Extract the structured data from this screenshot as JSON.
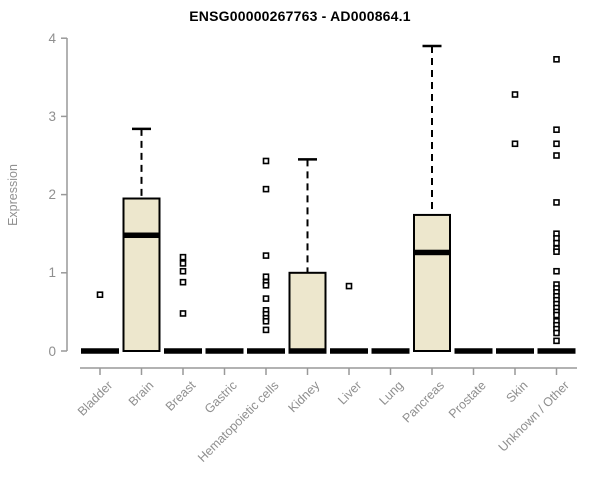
{
  "chart_data": {
    "type": "boxplot",
    "title": "ENSG00000267763 - AD000864.1",
    "ylabel": "Expression",
    "xlabel": "",
    "ylim": [
      0,
      4
    ],
    "yticks": [
      "0",
      "1",
      "2",
      "3",
      "4"
    ],
    "grid": false,
    "legend": "none",
    "colors": {
      "box_fill": "#EDE7CD",
      "box_stroke": "#000000",
      "median": "#000000",
      "whisker": "#000000",
      "outlier_fill": "#ffffff",
      "outlier_stroke": "#000000",
      "axis": "#999999",
      "tick_label": "#8f8f8f",
      "title": "#000000"
    },
    "marker": "open-square",
    "whisker_style": "dashed",
    "categories": [
      "Bladder",
      "Brain",
      "Breast",
      "Gastric",
      "Hematopoietic cells",
      "Kidney",
      "Liver",
      "Lung",
      "Pancreas",
      "Prostate",
      "Skin",
      "Unknown / Other"
    ],
    "boxes": [
      {
        "label": "Bladder",
        "q1": 0,
        "median": 0,
        "q3": 0,
        "whisker_low": 0,
        "whisker_high": 0,
        "outliers": [
          0.72
        ]
      },
      {
        "label": "Brain",
        "q1": 0,
        "median": 1.48,
        "q3": 1.95,
        "whisker_low": 0,
        "whisker_high": 2.84,
        "outliers": []
      },
      {
        "label": "Breast",
        "q1": 0,
        "median": 0,
        "q3": 0,
        "whisker_low": 0,
        "whisker_high": 0,
        "outliers": [
          1.2,
          1.12,
          1.02,
          0.88,
          0.48
        ]
      },
      {
        "label": "Gastric",
        "q1": 0,
        "median": 0,
        "q3": 0,
        "whisker_low": 0,
        "whisker_high": 0,
        "outliers": []
      },
      {
        "label": "Hematopoietic cells",
        "q1": 0,
        "median": 0,
        "q3": 0,
        "whisker_low": 0,
        "whisker_high": 0,
        "outliers": [
          2.43,
          2.07,
          1.22,
          0.95,
          0.88,
          0.84,
          0.67,
          0.52,
          0.47,
          0.42,
          0.38,
          0.27
        ]
      },
      {
        "label": "Kidney",
        "q1": 0,
        "median": 0,
        "q3": 1.0,
        "whisker_low": 0,
        "whisker_high": 2.45,
        "outliers": []
      },
      {
        "label": "Liver",
        "q1": 0,
        "median": 0,
        "q3": 0,
        "whisker_low": 0,
        "whisker_high": 0,
        "outliers": [
          0.83
        ]
      },
      {
        "label": "Lung",
        "q1": 0,
        "median": 0,
        "q3": 0,
        "whisker_low": 0,
        "whisker_high": 0,
        "outliers": []
      },
      {
        "label": "Pancreas",
        "q1": 0,
        "median": 1.26,
        "q3": 1.74,
        "whisker_low": 0,
        "whisker_high": 3.9,
        "outliers": []
      },
      {
        "label": "Prostate",
        "q1": 0,
        "median": 0,
        "q3": 0,
        "whisker_low": 0,
        "whisker_high": 0,
        "outliers": []
      },
      {
        "label": "Skin",
        "q1": 0,
        "median": 0,
        "q3": 0,
        "whisker_low": 0,
        "whisker_high": 0,
        "outliers": [
          3.28,
          2.65
        ]
      },
      {
        "label": "Unknown / Other",
        "q1": 0,
        "median": 0,
        "q3": 0,
        "whisker_low": 0,
        "whisker_high": 0,
        "outliers": [
          3.73,
          2.83,
          2.65,
          2.5,
          1.9,
          1.5,
          1.44,
          1.38,
          1.31,
          1.27,
          1.02,
          0.85,
          0.8,
          0.75,
          0.7,
          0.65,
          0.6,
          0.55,
          0.5,
          0.46,
          0.38,
          0.33,
          0.28,
          0.23,
          0.13
        ]
      }
    ]
  }
}
